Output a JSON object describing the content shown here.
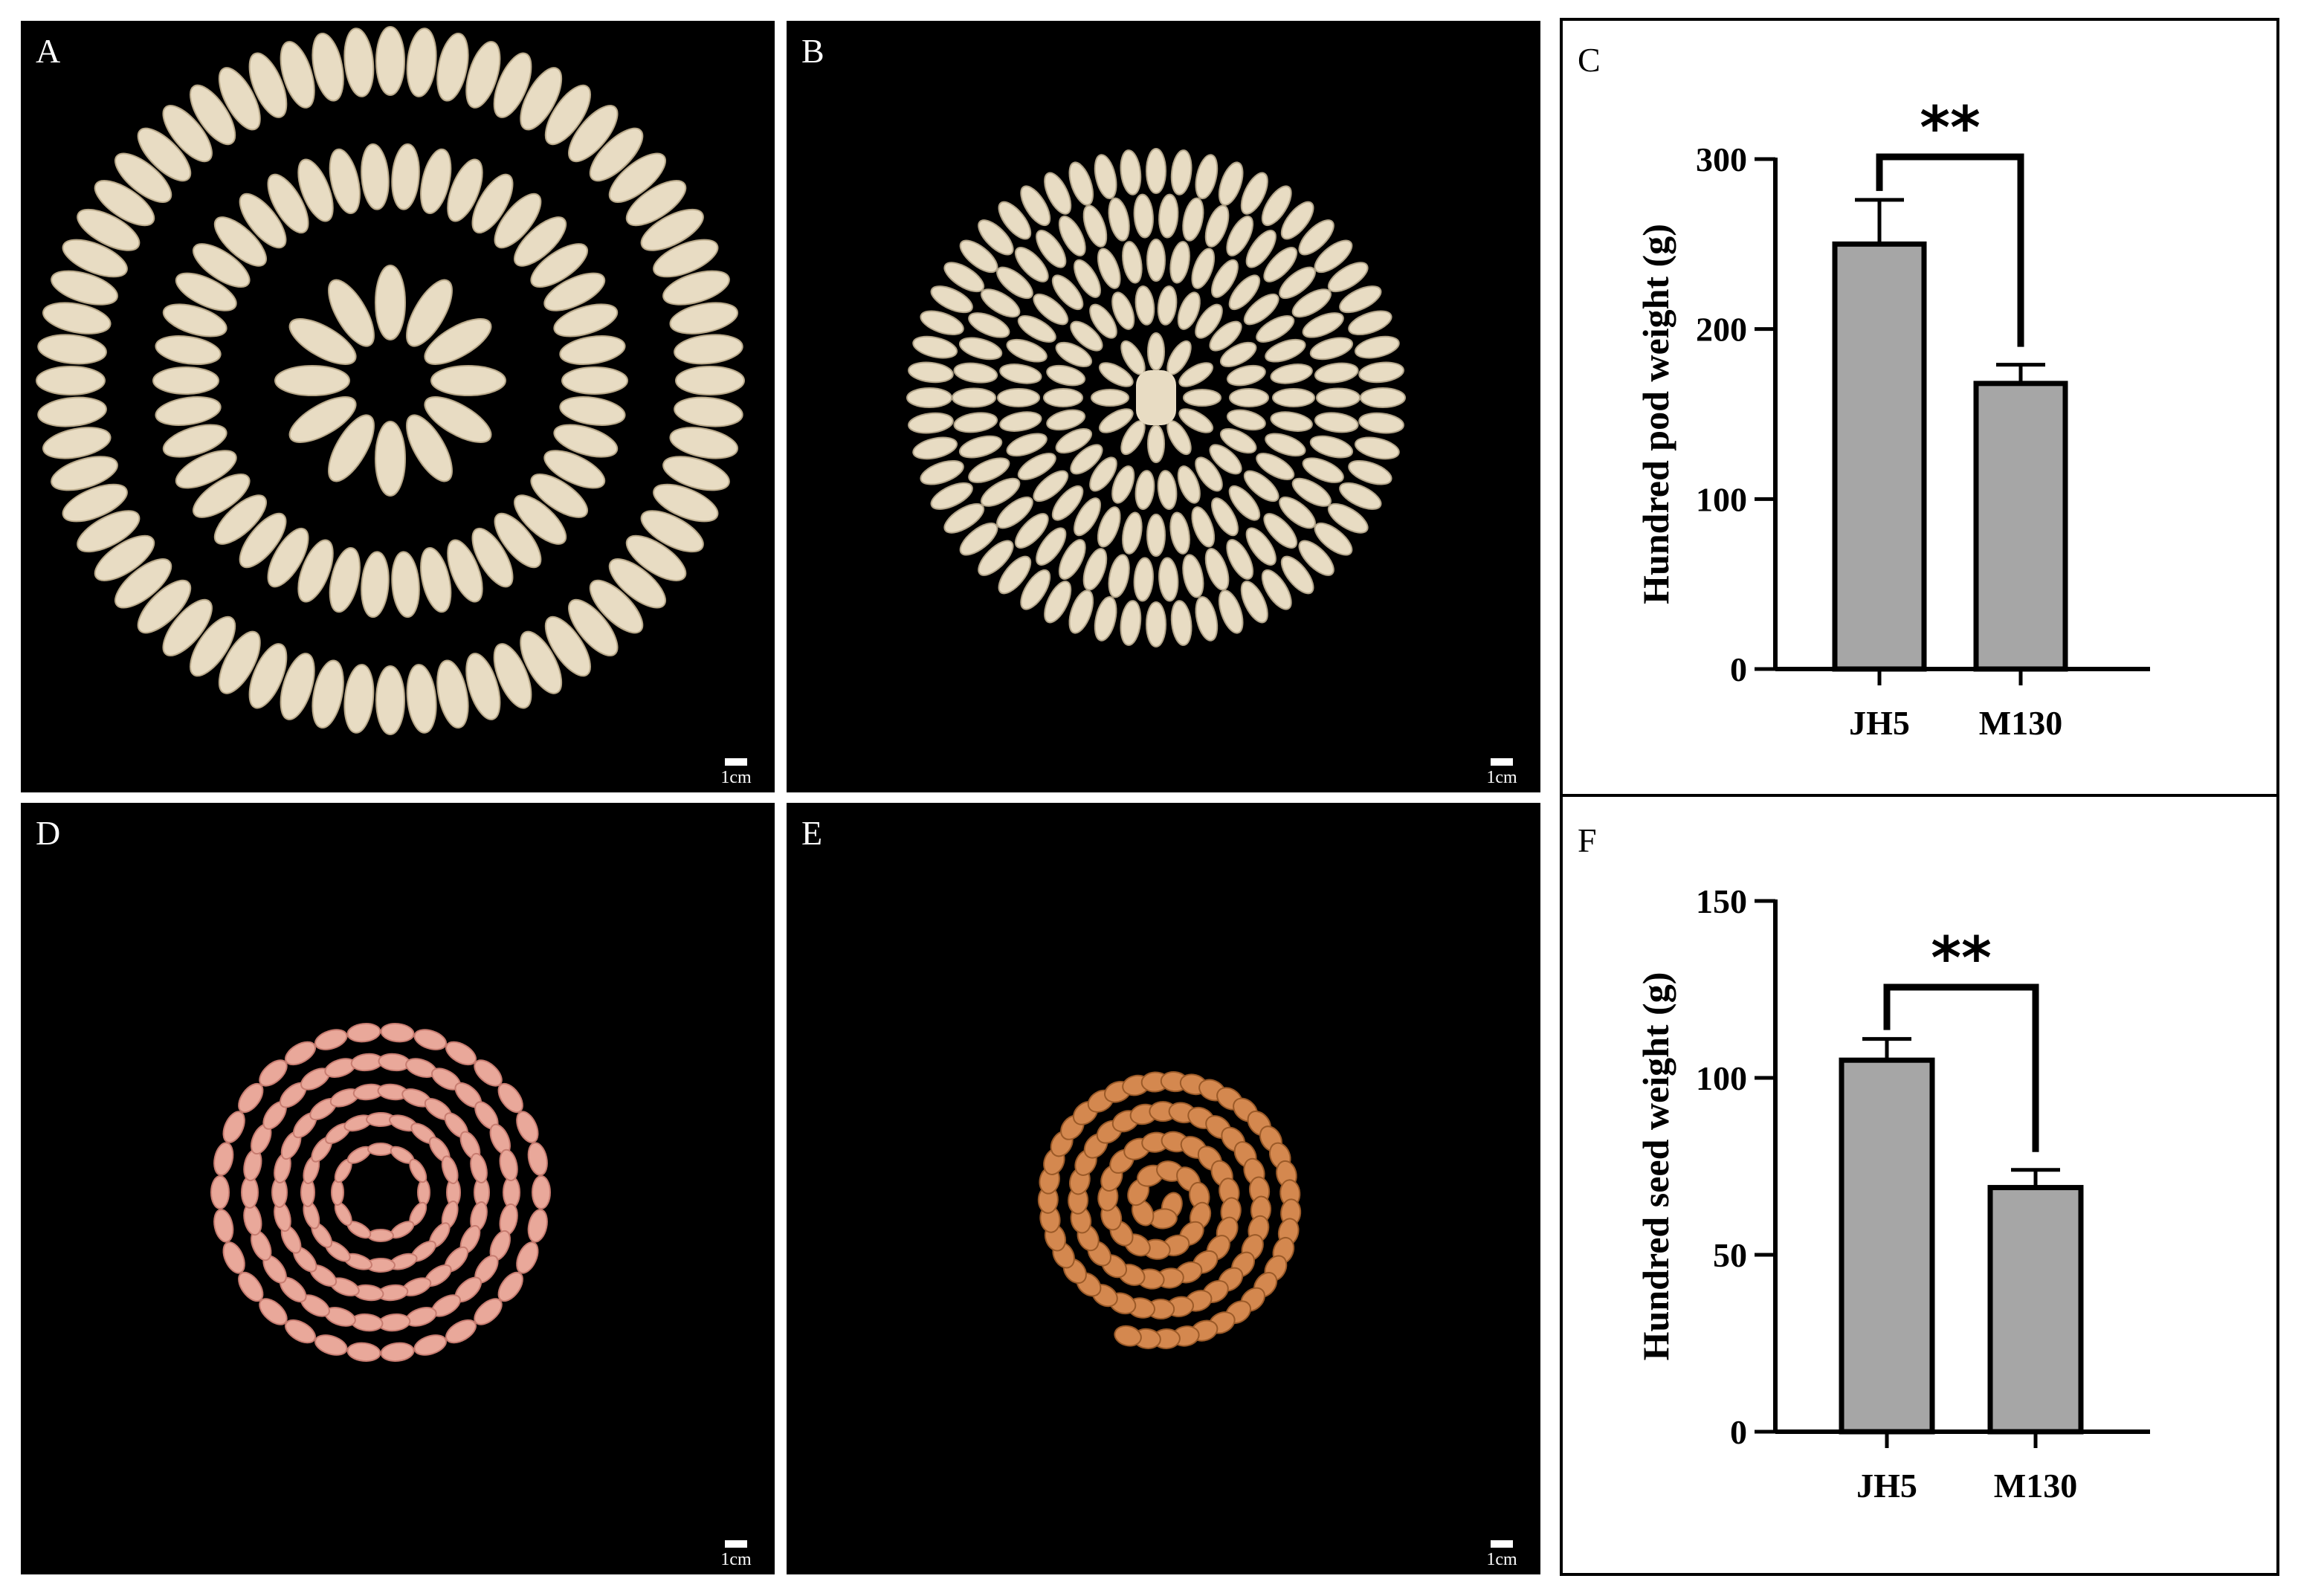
{
  "panels": {
    "A": {
      "letter": "A",
      "scale": "1cm"
    },
    "B": {
      "letter": "B",
      "scale": "1cm"
    },
    "C": {
      "letter": "C"
    },
    "D": {
      "letter": "D",
      "scale": "1cm"
    },
    "E": {
      "letter": "E",
      "scale": "1cm"
    },
    "F": {
      "letter": "F"
    }
  },
  "colors": {
    "bar": "#a6a6a6",
    "pod": "#e8dcc3",
    "seed_pink": "#e9a89a",
    "seed_brown": "#d4884f"
  },
  "chart_data": [
    {
      "type": "bar",
      "title": "",
      "categories": [
        "JH5",
        "M130"
      ],
      "values": [
        250,
        168
      ],
      "errors": [
        26,
        11
      ],
      "ylabel": "Hundred pod weight (g)",
      "xlabel": "",
      "ylim": [
        0,
        300
      ],
      "yticks": [
        0,
        100,
        200,
        300
      ],
      "significance": "**"
    },
    {
      "type": "bar",
      "title": "",
      "categories": [
        "JH5",
        "M130"
      ],
      "values": [
        105,
        69
      ],
      "errors": [
        6,
        5
      ],
      "ylabel": "Hundred seed weight (g)",
      "xlabel": "",
      "ylim": [
        0,
        150
      ],
      "yticks": [
        0,
        50,
        100,
        150
      ],
      "significance": "**"
    }
  ]
}
